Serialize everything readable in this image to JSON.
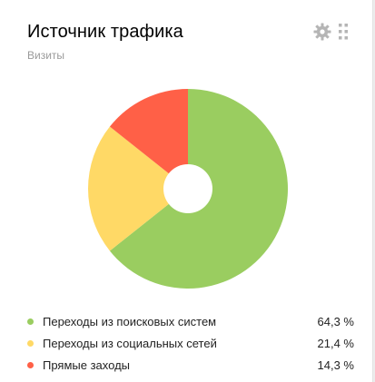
{
  "widget": {
    "title": "Источник трафика",
    "subtitle": "Визиты",
    "icons": {
      "settings": "gear-icon",
      "drag": "drag-handle-icon"
    }
  },
  "chart_data": {
    "type": "pie",
    "categories": [
      "Переходы из поисковых систем",
      "Переходы из социальных сетей",
      "Прямые заходы"
    ],
    "values": [
      64.3,
      21.4,
      14.3
    ],
    "labels": [
      "64,3 %",
      "21,4 %",
      "14,3 %"
    ],
    "colors": [
      "#9acd60",
      "#ffd966",
      "#ff6047"
    ],
    "donut": true,
    "legend_position": "bottom"
  }
}
